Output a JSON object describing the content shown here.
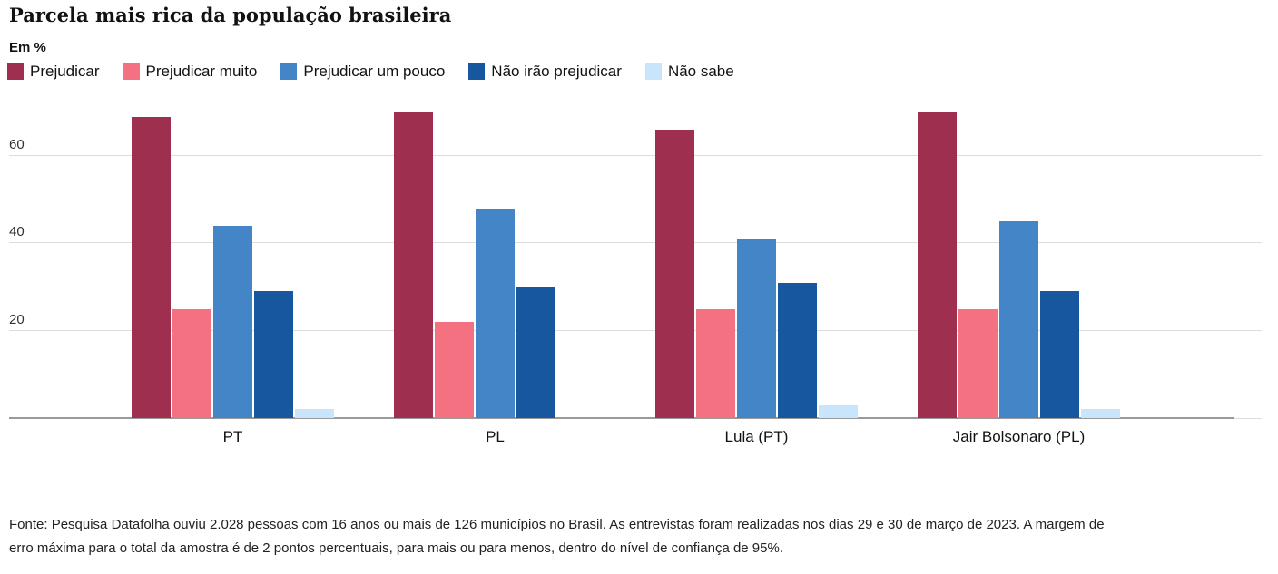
{
  "header": {
    "title": "Parcela mais rica da população brasileira",
    "unit_label": "Em %"
  },
  "chart_data": {
    "type": "bar",
    "title": "Parcela mais rica da população brasileira",
    "unit": "%",
    "categories": [
      "PT",
      "PL",
      "Lula (PT)",
      "Jair Bolsonaro (PL)"
    ],
    "series": [
      {
        "name": "Prejudicar",
        "color": "#9e2f4f",
        "values": [
          69,
          70,
          66,
          70
        ]
      },
      {
        "name": "Prejudicar muito",
        "color": "#f37181",
        "values": [
          25,
          22,
          25,
          25
        ]
      },
      {
        "name": "Prejudicar um pouco",
        "color": "#4385c6",
        "values": [
          44,
          48,
          41,
          45
        ]
      },
      {
        "name": "Não irão prejudicar",
        "color": "#1657a0",
        "values": [
          29,
          30,
          31,
          29
        ]
      },
      {
        "name": "Não sabe",
        "color": "#c8e5fb",
        "values": [
          2,
          0,
          3,
          2
        ]
      }
    ],
    "yticks": [
      20,
      40,
      60
    ],
    "ylim": [
      0,
      72
    ],
    "grid": true,
    "legend_position": "top",
    "xlabel": "",
    "ylabel": "Em %"
  },
  "footer": {
    "source": "Fonte: Pesquisa Datafolha ouviu 2.028 pessoas com 16 anos ou mais de 126 municípios no Brasil. As entrevistas foram realizadas nos dias 29 e 30 de março de 2023. A margem de erro máxima para o total da amostra é de 2 pontos percentuais, para mais ou para menos, dentro do nível de confiança de 95%."
  }
}
